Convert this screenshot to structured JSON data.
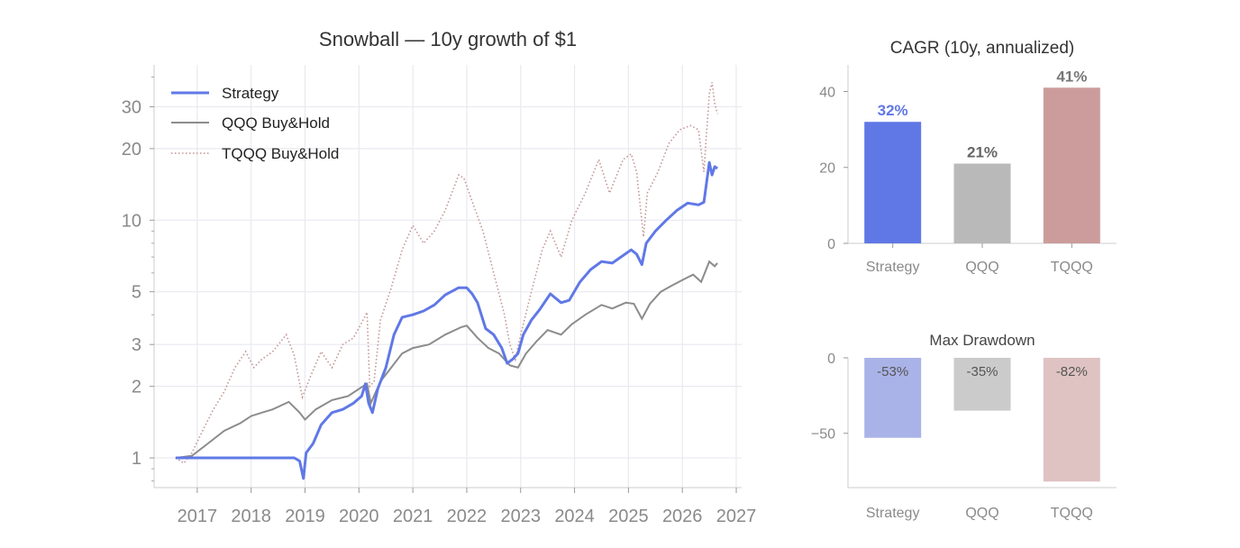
{
  "colors": {
    "strategy": "#6078e6",
    "qqq": "#8c8c8c",
    "tqqq": "#c49494",
    "cagr_strategy_bar": "#6078e6",
    "cagr_qqq_bar": "#b9b9b9",
    "cagr_tqqq_bar": "#cc9c9c",
    "dd_strategy_bar": "#aab3e8",
    "dd_qqq_bar": "#cbcbcb",
    "dd_tqqq_bar": "#dfc3c3",
    "grid": "#e9e9f0",
    "axis_text": "#8a8a8a",
    "title_text": "#333333"
  },
  "chart_data": [
    {
      "type": "line",
      "title": "Snowball — 10y growth of $1",
      "xlabel": "",
      "ylabel": "",
      "yscale": "log",
      "ylim": [
        0.75,
        45
      ],
      "xlim": [
        2016.2,
        2027.1
      ],
      "grid": true,
      "legend_position": "top-left",
      "x_ticks": [
        "2017",
        "2018",
        "2019",
        "2020",
        "2021",
        "2022",
        "2023",
        "2024",
        "2025",
        "2026",
        "2027"
      ],
      "y_ticks": [
        "1",
        "2",
        "3",
        "5",
        "10",
        "20",
        "30"
      ],
      "series": [
        {
          "name": "Strategy",
          "style": "solid-thick",
          "points": [
            [
              2016.6,
              1.0
            ],
            [
              2017.0,
              1.0
            ],
            [
              2017.5,
              1.0
            ],
            [
              2018.0,
              1.0
            ],
            [
              2018.5,
              1.0
            ],
            [
              2018.8,
              1.0
            ],
            [
              2018.9,
              0.97
            ],
            [
              2018.97,
              0.82
            ],
            [
              2019.02,
              1.05
            ],
            [
              2019.15,
              1.15
            ],
            [
              2019.3,
              1.38
            ],
            [
              2019.5,
              1.55
            ],
            [
              2019.7,
              1.6
            ],
            [
              2019.9,
              1.7
            ],
            [
              2020.05,
              1.82
            ],
            [
              2020.12,
              2.05
            ],
            [
              2020.18,
              1.7
            ],
            [
              2020.25,
              1.55
            ],
            [
              2020.35,
              1.95
            ],
            [
              2020.5,
              2.4
            ],
            [
              2020.65,
              3.3
            ],
            [
              2020.8,
              3.9
            ],
            [
              2021.0,
              4.0
            ],
            [
              2021.2,
              4.15
            ],
            [
              2021.4,
              4.4
            ],
            [
              2021.6,
              4.85
            ],
            [
              2021.85,
              5.2
            ],
            [
              2022.0,
              5.2
            ],
            [
              2022.1,
              4.9
            ],
            [
              2022.2,
              4.5
            ],
            [
              2022.35,
              3.5
            ],
            [
              2022.5,
              3.3
            ],
            [
              2022.65,
              2.9
            ],
            [
              2022.75,
              2.5
            ],
            [
              2022.85,
              2.6
            ],
            [
              2022.95,
              2.75
            ],
            [
              2023.05,
              3.3
            ],
            [
              2023.2,
              3.8
            ],
            [
              2023.35,
              4.2
            ],
            [
              2023.55,
              4.9
            ],
            [
              2023.75,
              4.5
            ],
            [
              2023.9,
              4.6
            ],
            [
              2024.1,
              5.5
            ],
            [
              2024.3,
              6.2
            ],
            [
              2024.5,
              6.7
            ],
            [
              2024.7,
              6.6
            ],
            [
              2024.9,
              7.1
            ],
            [
              2025.05,
              7.5
            ],
            [
              2025.15,
              7.2
            ],
            [
              2025.25,
              6.5
            ],
            [
              2025.33,
              8.0
            ],
            [
              2025.5,
              9.0
            ],
            [
              2025.7,
              10.0
            ],
            [
              2025.9,
              11.0
            ],
            [
              2026.1,
              11.8
            ],
            [
              2026.3,
              11.6
            ],
            [
              2026.4,
              11.9
            ],
            [
              2026.5,
              17.5
            ],
            [
              2026.55,
              15.5
            ],
            [
              2026.6,
              16.8
            ],
            [
              2026.65,
              16.5
            ]
          ]
        },
        {
          "name": "QQQ Buy&Hold",
          "style": "solid",
          "points": [
            [
              2016.6,
              1.0
            ],
            [
              2016.9,
              1.02
            ],
            [
              2017.2,
              1.15
            ],
            [
              2017.5,
              1.3
            ],
            [
              2017.8,
              1.4
            ],
            [
              2018.0,
              1.5
            ],
            [
              2018.2,
              1.55
            ],
            [
              2018.4,
              1.6
            ],
            [
              2018.7,
              1.72
            ],
            [
              2018.9,
              1.55
            ],
            [
              2019.0,
              1.45
            ],
            [
              2019.2,
              1.6
            ],
            [
              2019.5,
              1.75
            ],
            [
              2019.8,
              1.82
            ],
            [
              2020.0,
              1.95
            ],
            [
              2020.15,
              2.05
            ],
            [
              2020.22,
              1.7
            ],
            [
              2020.4,
              2.1
            ],
            [
              2020.6,
              2.4
            ],
            [
              2020.8,
              2.75
            ],
            [
              2021.0,
              2.9
            ],
            [
              2021.3,
              3.0
            ],
            [
              2021.6,
              3.3
            ],
            [
              2021.9,
              3.55
            ],
            [
              2022.0,
              3.6
            ],
            [
              2022.2,
              3.2
            ],
            [
              2022.4,
              2.9
            ],
            [
              2022.6,
              2.75
            ],
            [
              2022.8,
              2.45
            ],
            [
              2022.95,
              2.4
            ],
            [
              2023.1,
              2.75
            ],
            [
              2023.3,
              3.1
            ],
            [
              2023.5,
              3.45
            ],
            [
              2023.75,
              3.3
            ],
            [
              2023.95,
              3.65
            ],
            [
              2024.2,
              4.0
            ],
            [
              2024.5,
              4.4
            ],
            [
              2024.7,
              4.25
            ],
            [
              2024.95,
              4.5
            ],
            [
              2025.1,
              4.45
            ],
            [
              2025.25,
              3.85
            ],
            [
              2025.4,
              4.45
            ],
            [
              2025.6,
              5.0
            ],
            [
              2025.8,
              5.3
            ],
            [
              2026.0,
              5.6
            ],
            [
              2026.2,
              5.9
            ],
            [
              2026.35,
              5.5
            ],
            [
              2026.5,
              6.7
            ],
            [
              2026.6,
              6.4
            ],
            [
              2026.65,
              6.6
            ]
          ]
        },
        {
          "name": "TQQQ Buy&Hold",
          "style": "dotted",
          "points": [
            [
              2016.6,
              1.0
            ],
            [
              2016.75,
              0.95
            ],
            [
              2016.9,
              1.05
            ],
            [
              2017.1,
              1.3
            ],
            [
              2017.3,
              1.6
            ],
            [
              2017.5,
              1.9
            ],
            [
              2017.7,
              2.4
            ],
            [
              2017.9,
              2.8
            ],
            [
              2018.05,
              2.4
            ],
            [
              2018.2,
              2.6
            ],
            [
              2018.4,
              2.8
            ],
            [
              2018.65,
              3.3
            ],
            [
              2018.8,
              2.7
            ],
            [
              2018.95,
              1.8
            ],
            [
              2019.1,
              2.2
            ],
            [
              2019.3,
              2.8
            ],
            [
              2019.5,
              2.4
            ],
            [
              2019.7,
              3.0
            ],
            [
              2019.9,
              3.2
            ],
            [
              2020.05,
              3.7
            ],
            [
              2020.15,
              4.1
            ],
            [
              2020.2,
              2.0
            ],
            [
              2020.28,
              2.1
            ],
            [
              2020.4,
              3.8
            ],
            [
              2020.6,
              5.2
            ],
            [
              2020.8,
              7.5
            ],
            [
              2021.0,
              9.5
            ],
            [
              2021.2,
              8.0
            ],
            [
              2021.4,
              9.0
            ],
            [
              2021.6,
              11.0
            ],
            [
              2021.85,
              15.5
            ],
            [
              2021.95,
              15.0
            ],
            [
              2022.1,
              12.0
            ],
            [
              2022.3,
              9.0
            ],
            [
              2022.5,
              6.0
            ],
            [
              2022.7,
              4.0
            ],
            [
              2022.8,
              3.0
            ],
            [
              2022.9,
              2.6
            ],
            [
              2023.0,
              3.3
            ],
            [
              2023.2,
              5.0
            ],
            [
              2023.4,
              7.5
            ],
            [
              2023.55,
              9.0
            ],
            [
              2023.75,
              7.0
            ],
            [
              2023.95,
              10.0
            ],
            [
              2024.2,
              13.0
            ],
            [
              2024.45,
              18.0
            ],
            [
              2024.65,
              13.0
            ],
            [
              2024.9,
              18.0
            ],
            [
              2025.05,
              19.0
            ],
            [
              2025.15,
              16.0
            ],
            [
              2025.28,
              8.5
            ],
            [
              2025.35,
              13.0
            ],
            [
              2025.55,
              16.0
            ],
            [
              2025.75,
              21.0
            ],
            [
              2025.95,
              24.0
            ],
            [
              2026.15,
              25.0
            ],
            [
              2026.3,
              24.0
            ],
            [
              2026.4,
              16.0
            ],
            [
              2026.5,
              34.0
            ],
            [
              2026.55,
              38.0
            ],
            [
              2026.6,
              31.0
            ],
            [
              2026.65,
              28.0
            ]
          ]
        }
      ]
    },
    {
      "type": "bar",
      "title": "CAGR (10y, annualized)",
      "categories": [
        "Strategy",
        "QQQ",
        "TQQQ"
      ],
      "values": [
        32,
        21,
        41
      ],
      "labels": [
        "32%",
        "21%",
        "41%"
      ],
      "ylim": [
        0,
        47
      ],
      "y_ticks": [
        "0",
        "20",
        "40"
      ],
      "grid": false
    },
    {
      "type": "bar",
      "title": "Max Drawdown",
      "categories": [
        "Strategy",
        "QQQ",
        "TQQQ"
      ],
      "values": [
        -53,
        -35,
        -82
      ],
      "labels": [
        "-53%",
        "-35%",
        "-82%"
      ],
      "ylim": [
        -86,
        0
      ],
      "y_ticks": [
        "0",
        "−50"
      ],
      "grid": false
    }
  ]
}
